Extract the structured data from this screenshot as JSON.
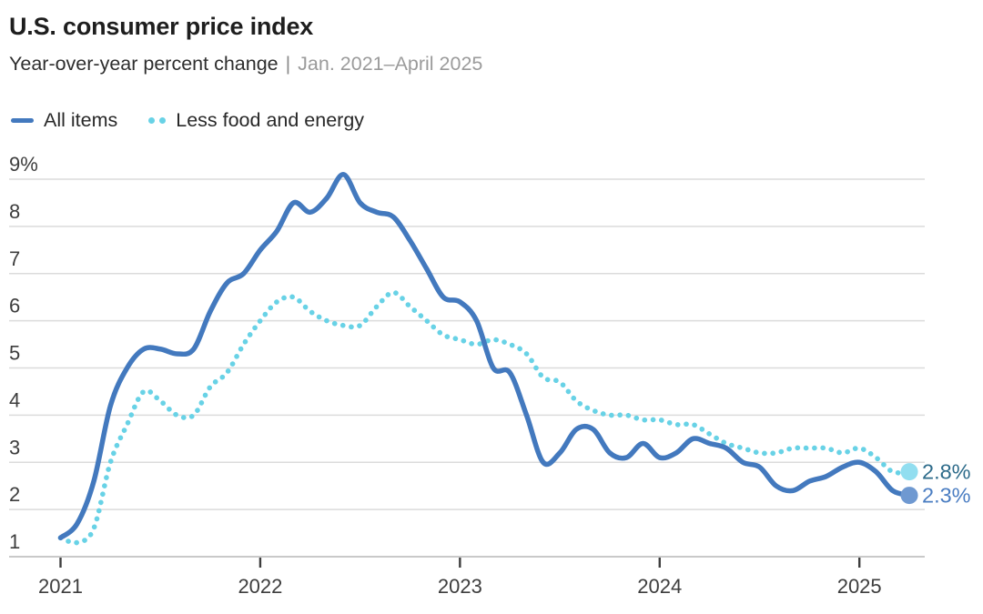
{
  "header": {
    "title": "U.S. consumer price index",
    "subtitle_main": "Year-over-year percent change",
    "subtitle_separator": "|",
    "subtitle_range": "Jan. 2021–April 2025"
  },
  "legend": {
    "items": [
      {
        "label": "All items"
      },
      {
        "label": "Less food and energy"
      }
    ]
  },
  "chart_data": {
    "type": "line",
    "title": "U.S. consumer price index",
    "subtitle": "Year-over-year percent change | Jan. 2021–April 2025",
    "x_unit": "monthly, Jan. 2021 through April 2025",
    "x_tick_labels": [
      "2021",
      "2022",
      "2023",
      "2024",
      "2025"
    ],
    "y_tick_labels": [
      "9%",
      "8",
      "7",
      "6",
      "5",
      "4",
      "3",
      "2",
      "1"
    ],
    "y_tick_values": [
      9,
      8,
      7,
      6,
      5,
      4,
      3,
      2,
      1
    ],
    "ylim": [
      1,
      9
    ],
    "grid": "horizontal",
    "legend_position": "top-left",
    "series": [
      {
        "name": "All items",
        "style": "solid",
        "color": "#4379be",
        "end_dot_color": "#6f99d1",
        "end_label": "2.3%",
        "end_label_color": "#4a7dc2",
        "values": [
          1.4,
          1.7,
          2.6,
          4.2,
          5.0,
          5.4,
          5.4,
          5.3,
          5.4,
          6.2,
          6.8,
          7.0,
          7.5,
          7.9,
          8.5,
          8.3,
          8.6,
          9.1,
          8.5,
          8.3,
          8.2,
          7.7,
          7.1,
          6.5,
          6.4,
          6.0,
          5.0,
          4.9,
          4.0,
          3.0,
          3.2,
          3.7,
          3.7,
          3.2,
          3.1,
          3.4,
          3.1,
          3.2,
          3.5,
          3.4,
          3.3,
          3.0,
          2.9,
          2.5,
          2.4,
          2.6,
          2.7,
          2.9,
          3.0,
          2.8,
          2.4,
          2.3
        ]
      },
      {
        "name": "Less food and energy",
        "style": "dotted",
        "color": "#68d2e6",
        "end_dot_color": "#92def0",
        "end_label": "2.8%",
        "end_label_color": "#2d6b8a",
        "values": [
          1.4,
          1.3,
          1.6,
          3.0,
          3.8,
          4.5,
          4.3,
          4.0,
          4.0,
          4.6,
          4.9,
          5.5,
          6.0,
          6.4,
          6.5,
          6.2,
          6.0,
          5.9,
          5.9,
          6.3,
          6.6,
          6.3,
          6.0,
          5.7,
          5.6,
          5.5,
          5.6,
          5.5,
          5.3,
          4.8,
          4.7,
          4.3,
          4.1,
          4.0,
          4.0,
          3.9,
          3.9,
          3.8,
          3.8,
          3.6,
          3.4,
          3.3,
          3.2,
          3.2,
          3.3,
          3.3,
          3.3,
          3.2,
          3.3,
          3.1,
          2.8,
          2.8
        ]
      }
    ],
    "colors": {
      "gridline": "#dbdbdb",
      "baseline": "#c9c9c9",
      "tick": "#3d3d3d",
      "axis_label": "#3d3d3d"
    }
  }
}
